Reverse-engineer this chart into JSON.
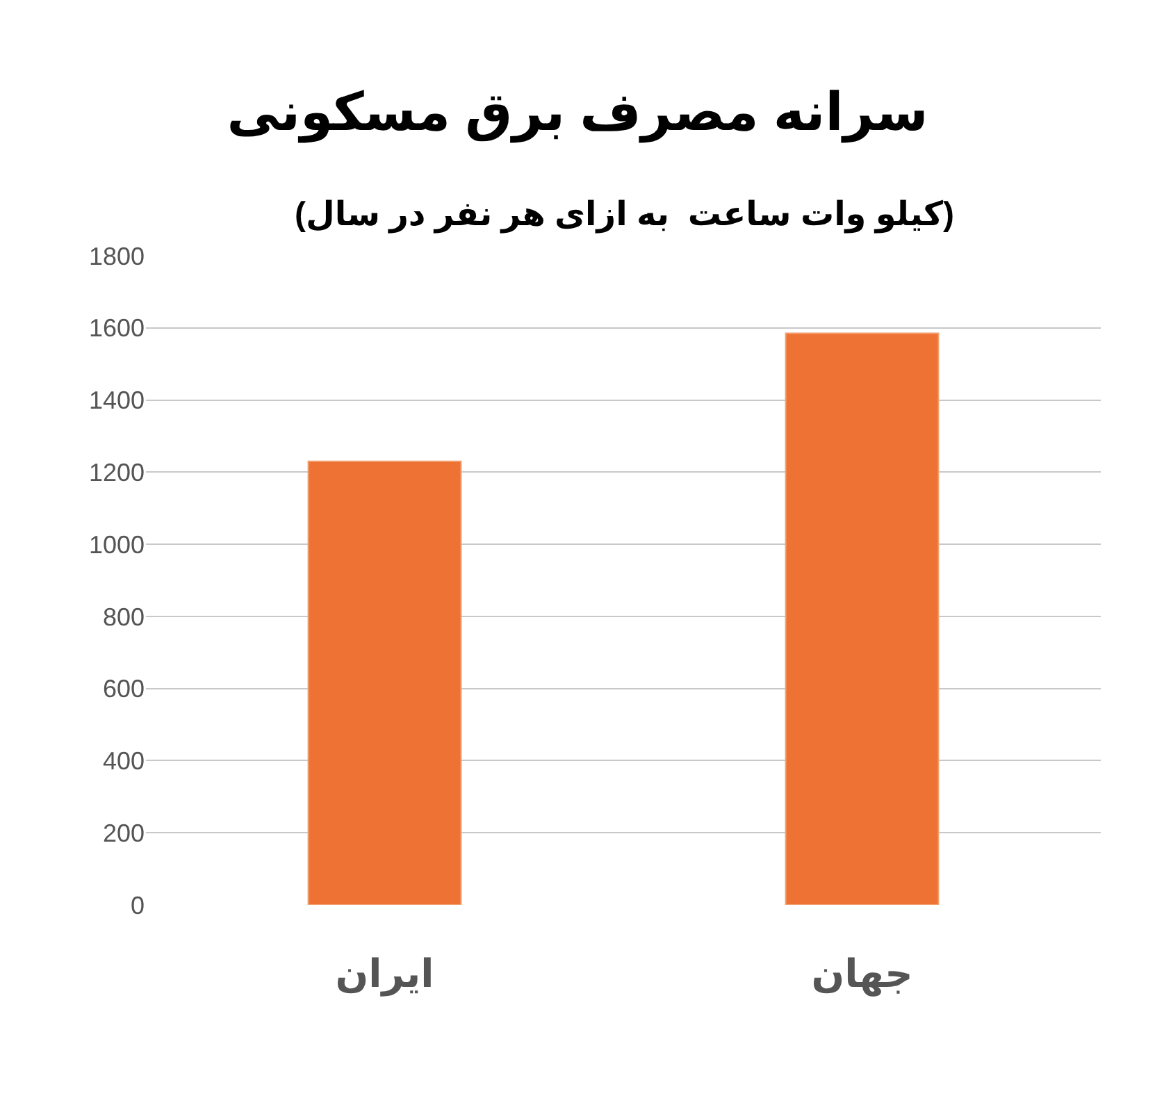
{
  "chart_data": {
    "type": "bar",
    "title": "سرانه مصرف برق مسکونی",
    "subtitle": "(کیلو وات ساعت  به ازای هر نفر در سال)",
    "categories": [
      "ایران",
      "جهان"
    ],
    "values": [
      1230,
      1585
    ],
    "color": "#ed7233",
    "ylim": [
      0,
      1800
    ],
    "yticks": [
      0,
      200,
      400,
      600,
      800,
      1000,
      1200,
      1400,
      1600,
      1800
    ],
    "grid": true
  }
}
